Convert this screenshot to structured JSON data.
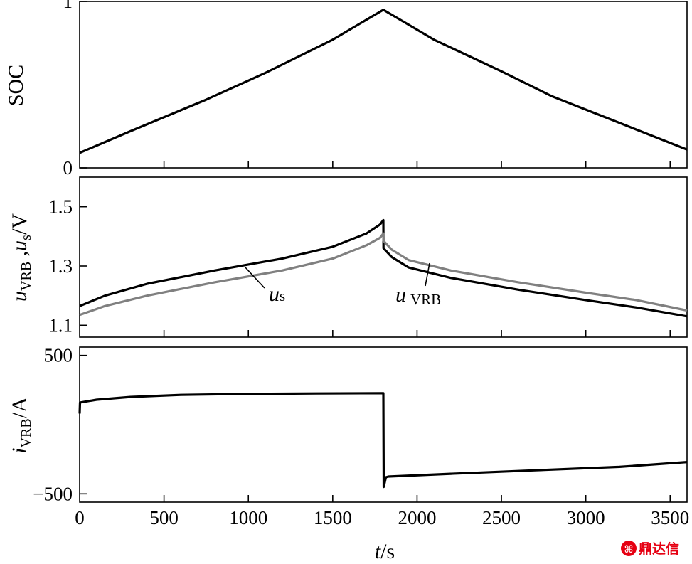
{
  "chart_data": [
    {
      "type": "line",
      "ylabel": "SOC",
      "ylim": [
        0,
        1
      ],
      "yticks": [
        0,
        1
      ],
      "ytick_labels": [
        "0",
        "1"
      ],
      "xlim": [
        0,
        3600
      ],
      "series": [
        {
          "color": "#000000",
          "x": [
            0,
            300,
            750,
            1100,
            1500,
            1800,
            2100,
            2500,
            2800,
            3200,
            3600
          ],
          "y": [
            0.09,
            0.22,
            0.41,
            0.57,
            0.77,
            0.95,
            0.77,
            0.58,
            0.43,
            0.27,
            0.11
          ]
        }
      ]
    },
    {
      "type": "line",
      "ylabel": "u_VRB , u_s /V",
      "ylim": [
        1.06,
        1.6
      ],
      "yticks": [
        1.1,
        1.3,
        1.5
      ],
      "ytick_labels": [
        "1.1",
        "1.3",
        "1.5"
      ],
      "xlim": [
        0,
        3600
      ],
      "annotations": [
        {
          "text_main": "u",
          "text_sub": "s"
        },
        {
          "text_main": "u",
          "text_sub": "VRB"
        }
      ],
      "series": [
        {
          "label": "u_VRB",
          "color": "#000000",
          "x": [
            0,
            150,
            400,
            800,
            1200,
            1500,
            1700,
            1780,
            1800,
            1801,
            1850,
            1950,
            2200,
            2600,
            3000,
            3300,
            3600
          ],
          "y": [
            1.165,
            1.2,
            1.24,
            1.285,
            1.325,
            1.365,
            1.41,
            1.44,
            1.455,
            1.36,
            1.33,
            1.295,
            1.26,
            1.22,
            1.185,
            1.16,
            1.13
          ]
        },
        {
          "label": "u_s",
          "color": "#808080",
          "x": [
            0,
            150,
            400,
            800,
            1200,
            1500,
            1700,
            1780,
            1800,
            1801,
            1850,
            1950,
            2200,
            2600,
            3000,
            3300,
            3600
          ],
          "y": [
            1.135,
            1.165,
            1.2,
            1.245,
            1.285,
            1.325,
            1.37,
            1.395,
            1.41,
            1.385,
            1.355,
            1.32,
            1.285,
            1.245,
            1.21,
            1.185,
            1.15
          ]
        }
      ]
    },
    {
      "type": "line",
      "ylabel": "i_VRB /A",
      "ylim": [
        -560,
        560
      ],
      "yticks": [
        -500,
        500
      ],
      "ytick_labels": [
        "−500",
        "500"
      ],
      "xlabel": "t/s",
      "xlim": [
        0,
        3600
      ],
      "xticks": [
        0,
        500,
        1000,
        1500,
        2000,
        2500,
        3000,
        3500
      ],
      "xtick_labels": [
        "0",
        "500",
        "1000",
        "1500",
        "2000",
        "2500",
        "3000",
        "3500"
      ],
      "series": [
        {
          "label": "i_VRB",
          "color": "#000000",
          "x": [
            0,
            2,
            100,
            300,
            600,
            1000,
            1400,
            1799,
            1800,
            1802,
            1815,
            1830,
            2200,
            2700,
            3200,
            3600
          ],
          "y": [
            80,
            160,
            180,
            200,
            215,
            222,
            225,
            227,
            227,
            -450,
            -380,
            -375,
            -355,
            -330,
            -305,
            -270
          ]
        }
      ]
    }
  ],
  "watermark": {
    "text": "鼎达信",
    "color": "#e60012"
  }
}
